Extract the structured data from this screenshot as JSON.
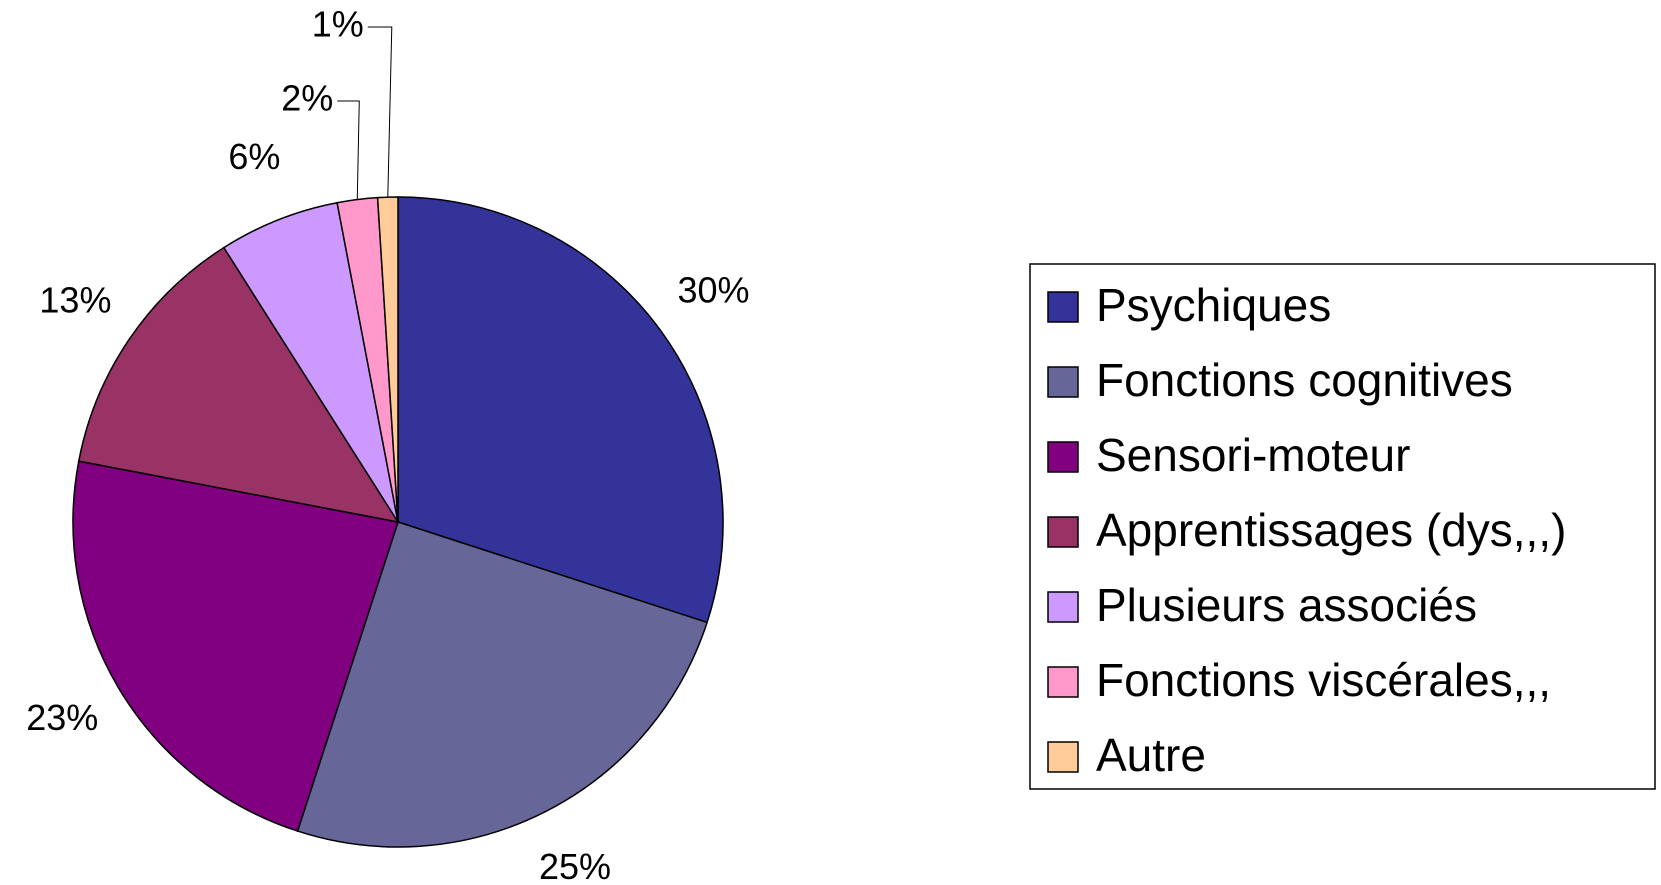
{
  "chart_data": {
    "type": "pie",
    "categories": [
      "Psychiques",
      "Fonctions cognitives",
      "Sensori-moteur",
      "Apprentissages (dys,,,)",
      "Plusieurs associés",
      "Fonctions viscérales,,,",
      "Autre"
    ],
    "values": [
      30,
      25,
      23,
      13,
      6,
      2,
      1
    ],
    "value_labels": [
      "30%",
      "25%",
      "23%",
      "13%",
      "6%",
      "2%",
      "1%"
    ],
    "colors": [
      "#333399",
      "#666699",
      "#800080",
      "#993366",
      "#cc99ff",
      "#ff99cc",
      "#ffcc99"
    ],
    "legend": "right"
  }
}
